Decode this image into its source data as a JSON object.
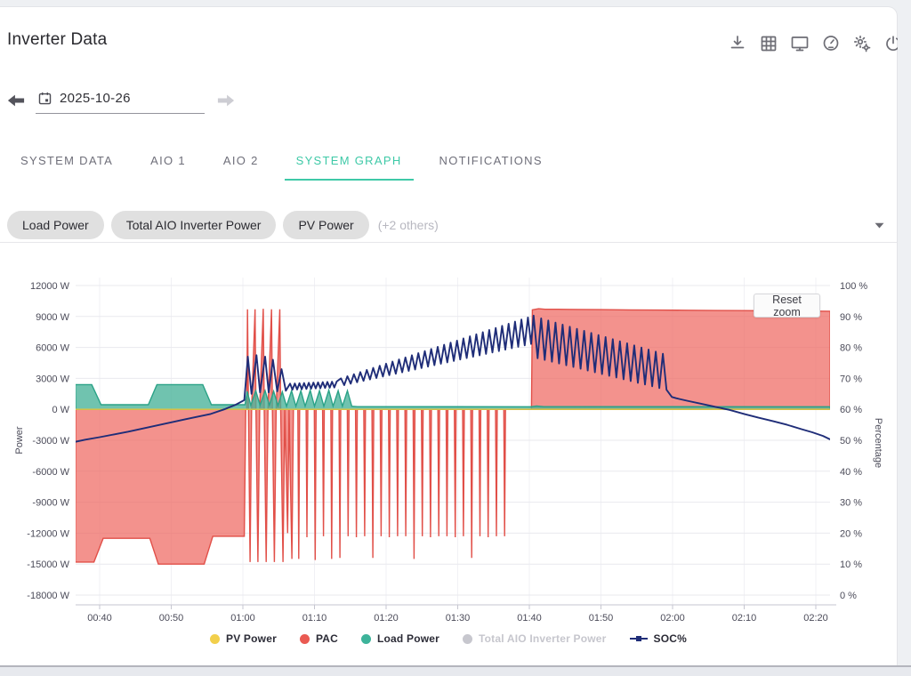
{
  "header": {
    "title": "Inverter Data"
  },
  "toolbar": {
    "icons": [
      "download-icon",
      "table-icon",
      "monitor-icon",
      "gauge-icon",
      "settings-icon",
      "power-icon"
    ]
  },
  "date_nav": {
    "date": "2025-10-26",
    "prev_enabled": true,
    "next_enabled": false
  },
  "tabs": [
    {
      "label": "SYSTEM DATA",
      "active": false
    },
    {
      "label": "AIO 1",
      "active": false
    },
    {
      "label": "AIO 2",
      "active": false
    },
    {
      "label": "SYSTEM GRAPH",
      "active": true
    },
    {
      "label": "NOTIFICATIONS",
      "active": false
    }
  ],
  "filters": {
    "chips": [
      "Load Power",
      "Total AIO Inverter Power",
      "PV Power"
    ],
    "others_label": "(+2 others)"
  },
  "chart": {
    "reset_zoom_label": "Reset zoom"
  },
  "colors": {
    "accent_teal": "#3ec9a7",
    "pac_fill": "rgba(238,104,97,0.72)",
    "pac_stroke": "#e14f48",
    "load_fill": "rgba(72,178,153,0.78)",
    "load_stroke": "#2aa287",
    "pv_fill": "rgba(242,207,75,0.75)",
    "pv_stroke": "#e8c53e",
    "soc_stroke": "#1f2d78",
    "disabled_gray": "#c7c7ce",
    "legend_pv": "#f2cf4b",
    "legend_pac": "#ea5a52",
    "legend_load": "#3db39a"
  },
  "chart_data": {
    "type": "mixed",
    "title": "",
    "left_axis": {
      "label": "Power",
      "min": -18000,
      "max": 12000,
      "ticks": [
        [
          12000,
          "12000 W"
        ],
        [
          9000,
          "9000 W"
        ],
        [
          6000,
          "6000 W"
        ],
        [
          3000,
          "3000 W"
        ],
        [
          0,
          "0 W"
        ],
        [
          -3000,
          "-3000 W"
        ],
        [
          -6000,
          "-6000 W"
        ],
        [
          -9000,
          "-9000 W"
        ],
        [
          -12000,
          "-12000 W"
        ],
        [
          -15000,
          "-15000 W"
        ],
        [
          -18000,
          "-18000 W"
        ]
      ]
    },
    "right_axis": {
      "label": "Percentage",
      "min": 0,
      "max": 100,
      "ticks": [
        [
          100,
          "100 %"
        ],
        [
          90,
          "90 %"
        ],
        [
          80,
          "80 %"
        ],
        [
          70,
          "70 %"
        ],
        [
          60,
          "60 %"
        ],
        [
          50,
          "50 %"
        ],
        [
          40,
          "40 %"
        ],
        [
          30,
          "30 %"
        ],
        [
          20,
          "20 %"
        ],
        [
          10,
          "10 %"
        ],
        [
          0,
          "0 %"
        ]
      ]
    },
    "x_axis": {
      "unit": "minutes",
      "min": 36.6,
      "max": 142,
      "ticks": [
        [
          40,
          "00:40"
        ],
        [
          50,
          "00:50"
        ],
        [
          60,
          "01:00"
        ],
        [
          70,
          "01:10"
        ],
        [
          80,
          "01:20"
        ],
        [
          90,
          "01:30"
        ],
        [
          100,
          "01:40"
        ],
        [
          110,
          "01:50"
        ],
        [
          120,
          "02:00"
        ],
        [
          130,
          "02:10"
        ],
        [
          140,
          "02:20"
        ]
      ]
    },
    "grid": true,
    "legend_position": "bottom",
    "legend": [
      {
        "label": "PV Power",
        "marker": "dot",
        "color": "#f2cf4b",
        "enabled": true
      },
      {
        "label": "PAC",
        "marker": "dot",
        "color": "#ea5a52",
        "enabled": true
      },
      {
        "label": "Load Power",
        "marker": "dot",
        "color": "#3db39a",
        "enabled": true
      },
      {
        "label": "Total AIO Inverter Power",
        "marker": "dot",
        "color": "#c7c7ce",
        "enabled": false
      },
      {
        "label": "SOC%",
        "marker": "line",
        "color": "#1f2d78",
        "enabled": true
      }
    ],
    "series": [
      {
        "name": "PAC",
        "kind": "area",
        "axis": "left",
        "visible": true,
        "fill": "rgba(238,104,97,0.72)",
        "stroke": "#e14f48",
        "segments": [
          {
            "type": "points",
            "pts": [
              [
                36.6,
                -14800
              ],
              [
                39.2,
                -14800
              ],
              [
                40.5,
                -12500
              ],
              [
                47.0,
                -12500
              ],
              [
                48.2,
                -15000
              ],
              [
                54.6,
                -15000
              ],
              [
                55.8,
                -12300
              ],
              [
                60.2,
                -12300
              ],
              [
                60.4,
                0
              ]
            ]
          },
          {
            "type": "points",
            "pts": [
              [
                60.55,
                0
              ],
              [
                60.65,
                9700
              ],
              [
                60.78,
                0
              ],
              [
                61.0,
                -14800
              ],
              [
                61.22,
                0
              ],
              [
                61.7,
                9700
              ],
              [
                61.83,
                0
              ],
              [
                62.1,
                -14800
              ],
              [
                62.35,
                0
              ],
              [
                62.85,
                9750
              ],
              [
                62.98,
                0
              ],
              [
                63.25,
                -14800
              ],
              [
                63.5,
                0
              ],
              [
                64.0,
                9700
              ],
              [
                64.13,
                0
              ],
              [
                64.4,
                -14800
              ],
              [
                64.65,
                0
              ],
              [
                65.15,
                9700
              ],
              [
                65.28,
                0
              ],
              [
                65.6,
                -14800
              ],
              [
                65.85,
                0
              ],
              [
                66.25,
                -12000
              ],
              [
                66.45,
                0
              ],
              [
                66.85,
                -14500
              ],
              [
                67.05,
                0
              ]
            ]
          },
          {
            "type": "spikes",
            "t0": 67.8,
            "step": 1.15,
            "width": 0.12,
            "base": 0,
            "depths": [
              -14500,
              -12400,
              -14600,
              -12300,
              -14500,
              -14400,
              -12300,
              -12400,
              -12300,
              -14400,
              -12300,
              -12400,
              -12300,
              -12300,
              -14500,
              -12300,
              -12400,
              -12300,
              -12300,
              -12400,
              -12300,
              -14400,
              -12300,
              -12400,
              -12300,
              -12300
            ]
          },
          {
            "type": "points",
            "pts": [
              [
                96.7,
                0
              ],
              [
                100.3,
                0
              ],
              [
                100.42,
                9650
              ],
              [
                101.3,
                9750
              ],
              [
                102.2,
                9700
              ],
              [
                104,
                9700
              ],
              [
                107,
                9680
              ],
              [
                110,
                9660
              ],
              [
                114,
                9640
              ],
              [
                118,
                9620
              ],
              [
                122,
                9600
              ],
              [
                126,
                9580
              ],
              [
                130,
                9565
              ],
              [
                134,
                9550
              ],
              [
                138,
                9530
              ],
              [
                142,
                9510
              ]
            ]
          }
        ]
      },
      {
        "name": "Load Power",
        "kind": "area",
        "axis": "left",
        "visible": true,
        "fill": "rgba(72,178,153,0.78)",
        "stroke": "#2aa287",
        "segments": [
          {
            "type": "points",
            "pts": [
              [
                36.6,
                2400
              ],
              [
                38.9,
                2400
              ],
              [
                40.2,
                450
              ],
              [
                46.8,
                450
              ],
              [
                48.0,
                2400
              ],
              [
                54.4,
                2400
              ],
              [
                55.6,
                450
              ],
              [
                60.3,
                450
              ],
              [
                60.6,
                1750
              ],
              [
                61.1,
                400
              ],
              [
                61.8,
                1800
              ],
              [
                62.4,
                400
              ],
              [
                63.1,
                1800
              ],
              [
                63.7,
                400
              ],
              [
                64.3,
                1750
              ],
              [
                64.9,
                350
              ],
              [
                65.5,
                1700
              ],
              [
                66.1,
                300
              ],
              [
                66.8,
                1800
              ],
              [
                67.4,
                300
              ],
              [
                68.1,
                1800
              ],
              [
                68.7,
                300
              ],
              [
                69.4,
                1850
              ],
              [
                70.0,
                300
              ],
              [
                70.7,
                1800
              ],
              [
                71.3,
                300
              ],
              [
                72.0,
                1850
              ],
              [
                72.6,
                300
              ],
              [
                73.3,
                1800
              ],
              [
                73.9,
                300
              ],
              [
                74.6,
                1800
              ],
              [
                75.2,
                300
              ],
              [
                76.0,
                260
              ],
              [
                100.2,
                250
              ],
              [
                101.0,
                320
              ],
              [
                102.0,
                260
              ],
              [
                142,
                250
              ]
            ]
          }
        ]
      },
      {
        "name": "PV Power",
        "kind": "area",
        "axis": "left",
        "visible": true,
        "fill": "rgba(242,207,75,0.75)",
        "stroke": "#e8c53e",
        "segments": [
          {
            "type": "points",
            "pts": [
              [
                36.6,
                0
              ],
              [
                142,
                0
              ]
            ]
          }
        ]
      },
      {
        "name": "Total AIO Inverter Power",
        "kind": "area",
        "axis": "left",
        "visible": false,
        "fill": "rgba(199,199,206,0.5)",
        "stroke": "#c7c7ce",
        "segments": []
      },
      {
        "name": "SOC%",
        "kind": "line",
        "axis": "right",
        "visible": true,
        "stroke": "#1f2d78",
        "segments": [
          {
            "type": "points",
            "pts": [
              [
                36.6,
                49.5
              ],
              [
                38,
                50.2
              ],
              [
                40,
                51.0
              ],
              [
                42,
                51.9
              ],
              [
                44,
                52.8
              ],
              [
                46,
                53.8
              ],
              [
                48,
                54.8
              ],
              [
                50,
                55.8
              ],
              [
                52,
                56.8
              ],
              [
                54,
                57.8
              ],
              [
                55.5,
                58.5
              ],
              [
                57.4,
                60.0
              ],
              [
                59,
                61.5
              ],
              [
                60.2,
                63.0
              ]
            ]
          },
          {
            "type": "points",
            "pts": [
              [
                60.7,
                77.0
              ],
              [
                61.2,
                65.0
              ],
              [
                61.9,
                77.5
              ],
              [
                62.4,
                65.5
              ],
              [
                63.1,
                77.0
              ],
              [
                63.6,
                65.5
              ],
              [
                64.2,
                76.0
              ],
              [
                64.8,
                65.8
              ],
              [
                65.4,
                73.0
              ],
              [
                66.0,
                66.0
              ]
            ]
          },
          {
            "type": "zigzag",
            "t0": 66.6,
            "t1": 73.1,
            "half": 0.325,
            "hi0": 68.3,
            "hi1": 69.0,
            "lo0": 66.3,
            "lo1": 67.1,
            "start": "hi"
          },
          {
            "type": "zigzag",
            "t0": 73.7,
            "t1": 100.6,
            "half": 0.45,
            "hi0": 70.0,
            "hi1": 90.3,
            "lo0": 67.6,
            "lo1": 81.3,
            "start": "hi"
          },
          {
            "type": "zigzag",
            "t0": 101.15,
            "t1": 119.35,
            "half": 0.5,
            "hi0": 89.7,
            "hi1": 77.5,
            "lo0": 76.5,
            "lo1": 66.2,
            "start": "lo"
          },
          {
            "type": "points",
            "pts": [
              [
                119.9,
                64.0
              ],
              [
                120.5,
                63.6
              ],
              [
                122,
                62.8
              ],
              [
                124,
                61.8
              ],
              [
                126,
                60.8
              ],
              [
                128,
                59.8
              ],
              [
                130,
                58.5
              ],
              [
                132,
                57.3
              ],
              [
                134,
                56.2
              ],
              [
                136,
                55.0
              ],
              [
                138,
                53.6
              ],
              [
                139.5,
                52.6
              ],
              [
                141,
                51.4
              ],
              [
                142,
                50.3
              ]
            ]
          }
        ]
      }
    ]
  }
}
